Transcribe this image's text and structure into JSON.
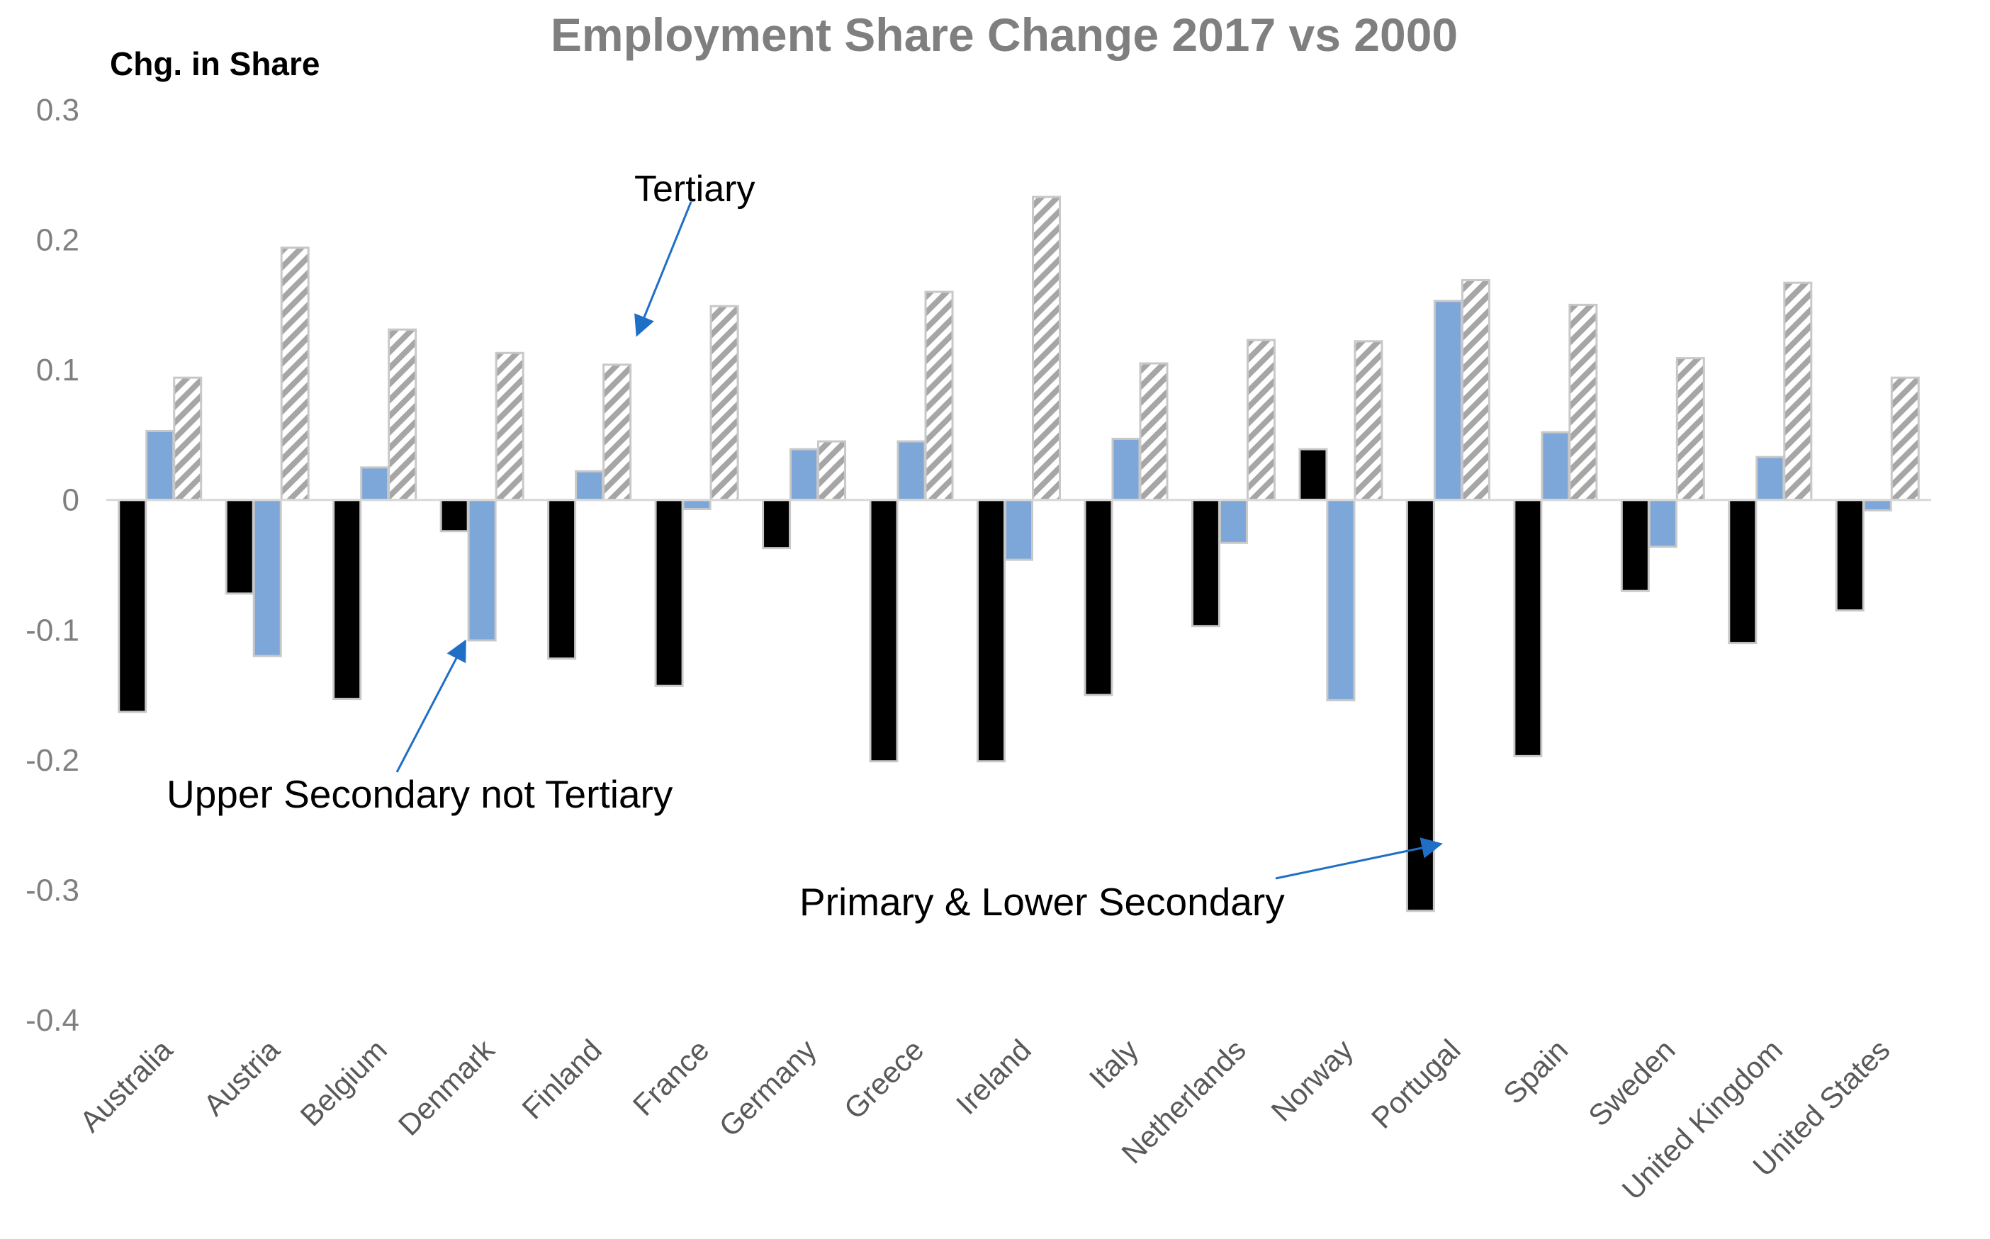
{
  "chart_data": {
    "type": "bar",
    "title": "Employment Share Change 2017 vs 2000",
    "ylabel": "Chg. in Share",
    "xlabel": "",
    "ylim": [
      -0.4,
      0.3
    ],
    "y_ticks": [
      "0.3",
      "0.2",
      "0.1",
      "0",
      "-0.1",
      "-0.2",
      "-0.3",
      "-0.4"
    ],
    "y_tick_values": [
      0.3,
      0.2,
      0.1,
      0,
      -0.1,
      -0.2,
      -0.3,
      -0.4
    ],
    "grid": false,
    "legend": "none (series identified by annotations)",
    "categories": [
      "Australia",
      "Austria",
      "Belgium",
      "Denmark",
      "Finland",
      "France",
      "Germany",
      "Greece",
      "Ireland",
      "Italy",
      "Netherlands",
      "Norway",
      "Portugal",
      "Spain",
      "Sweden",
      "United Kingdom",
      "United States"
    ],
    "series": [
      {
        "name": "Primary & Lower Secondary",
        "color": "#000000",
        "values": [
          -0.163,
          -0.072,
          -0.153,
          -0.024,
          -0.122,
          -0.143,
          -0.037,
          -0.201,
          -0.201,
          -0.15,
          -0.097,
          0.039,
          -0.316,
          -0.197,
          -0.07,
          -0.11,
          -0.085
        ]
      },
      {
        "name": "Upper Secondary not Tertiary",
        "color": "#7da7d9",
        "values": [
          0.053,
          -0.12,
          0.025,
          -0.108,
          0.022,
          -0.007,
          0.039,
          0.045,
          -0.046,
          0.047,
          -0.033,
          -0.154,
          0.153,
          0.052,
          -0.036,
          0.033,
          -0.008
        ]
      },
      {
        "name": "Tertiary",
        "color": "#a6a6a6",
        "pattern": "diagonal-hatch",
        "values": [
          0.094,
          0.194,
          0.131,
          0.113,
          0.104,
          0.149,
          0.045,
          0.16,
          0.233,
          0.105,
          0.123,
          0.122,
          0.169,
          0.15,
          0.109,
          0.167,
          0.094
        ]
      }
    ],
    "annotations": [
      {
        "text": "Tertiary",
        "series": "Tertiary",
        "points_to": "Finland"
      },
      {
        "text": "Upper Secondary not Tertiary",
        "series": "Upper Secondary not Tertiary",
        "points_to": "Denmark"
      },
      {
        "text": "Primary & Lower Secondary",
        "series": "Primary & Lower Secondary",
        "points_to": "Portugal"
      }
    ]
  }
}
